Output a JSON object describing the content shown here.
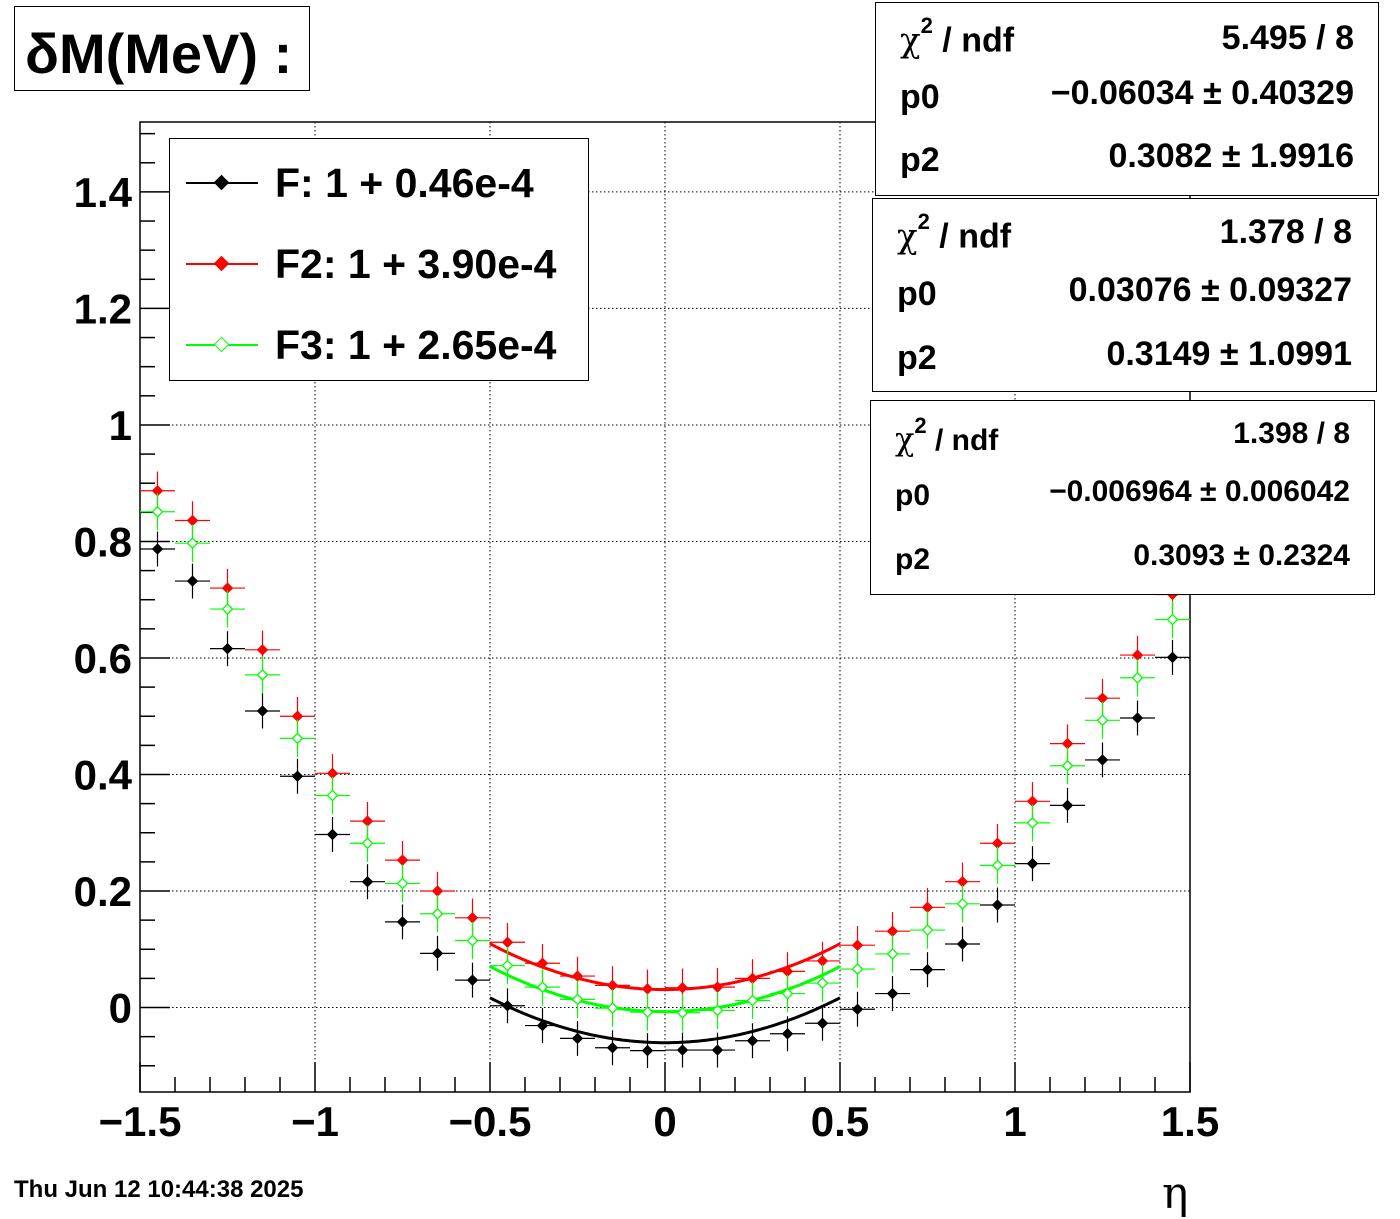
{
  "title": "δM(MeV) :",
  "date": "Thu Jun 12 10:44:38 2025",
  "x_label": "η",
  "legend": [
    {
      "label": "F: 1 + 0.46e-4",
      "color": "#000000",
      "marker": "filled-diamond"
    },
    {
      "label": "F2: 1 + 3.90e-4",
      "color": "#ff0000",
      "marker": "filled-diamond"
    },
    {
      "label": "F3: 1 + 2.65e-4",
      "color": "#00ff00",
      "marker": "open-diamond"
    }
  ],
  "stats": [
    {
      "chi2_label": "χ",
      "chi2_sup": "2",
      "chi2_tail": " / ndf",
      "chi2": "5.495 / 8",
      "p0_label": "p0",
      "p0": "−0.06034 ± 0.40329",
      "p2_label": "p2",
      "p2": "0.3082 ± 1.9916"
    },
    {
      "chi2_label": "χ",
      "chi2_sup": "2",
      "chi2_tail": " / ndf",
      "chi2": "1.378 / 8",
      "p0_label": "p0",
      "p0": "0.03076 ± 0.09327",
      "p2_label": "p2",
      "p2": "0.3149 ± 1.0991"
    },
    {
      "chi2_label": "χ",
      "chi2_sup": "2",
      "chi2_tail": " / ndf",
      "chi2": "1.398 / 8",
      "p0_label": "p0",
      "p0": "−0.006964 ± 0.006042",
      "p2_label": "p2",
      "p2": "0.3093 ± 0.2324"
    }
  ],
  "chart_data": {
    "type": "scatter",
    "xlim": [
      -1.5,
      1.5
    ],
    "ylim": [
      -0.145,
      1.52
    ],
    "x_ticks": [
      -1.5,
      -1,
      -0.5,
      0,
      0.5,
      1,
      1.5
    ],
    "x_tick_labels": [
      "−1.5",
      "−1",
      "−0.5",
      "0",
      "0.5",
      "1",
      "1.5"
    ],
    "y_ticks": [
      0,
      0.2,
      0.4,
      0.6,
      0.8,
      1,
      1.2,
      1.4
    ],
    "y_tick_labels": [
      "0",
      "0.2",
      "0.4",
      "0.6",
      "0.8",
      "1",
      "1.2",
      "1.4"
    ],
    "grid": true,
    "x": [
      -1.45,
      -1.35,
      -1.25,
      -1.15,
      -1.05,
      -0.95,
      -0.85,
      -0.75,
      -0.65,
      -0.55,
      -0.45,
      -0.35,
      -0.25,
      -0.15,
      -0.05,
      0.05,
      0.15,
      0.25,
      0.35,
      0.45,
      0.55,
      0.65,
      0.75,
      0.85,
      0.95,
      1.05,
      1.15,
      1.25,
      1.35,
      1.45
    ],
    "x_err": 0.05,
    "series": [
      {
        "name": "F: 1 + 0.46e-4",
        "color": "#000000",
        "marker": "filled",
        "values": [
          0.787,
          0.732,
          0.616,
          0.509,
          0.397,
          0.297,
          0.216,
          0.147,
          0.093,
          0.047,
          0.003,
          -0.031,
          -0.053,
          -0.069,
          -0.074,
          -0.073,
          -0.073,
          -0.057,
          -0.045,
          -0.027,
          -0.003,
          0.024,
          0.065,
          0.109,
          0.176,
          0.247,
          0.347,
          0.425,
          0.497,
          0.601
        ],
        "y_err": 0.03,
        "fit": {
          "p0": -0.06034,
          "p2": 0.3082,
          "range": [
            -0.5,
            0.5
          ]
        }
      },
      {
        "name": "F2: 1 + 3.90e-4",
        "color": "#ff0000",
        "marker": "filled",
        "values": [
          0.887,
          0.836,
          0.72,
          0.614,
          0.5,
          0.402,
          0.32,
          0.253,
          0.2,
          0.154,
          0.112,
          0.076,
          0.054,
          0.038,
          0.032,
          0.034,
          0.035,
          0.05,
          0.062,
          0.08,
          0.107,
          0.131,
          0.172,
          0.216,
          0.282,
          0.354,
          0.453,
          0.531,
          0.605,
          0.709
        ],
        "y_err": 0.033,
        "fit": {
          "p0": 0.03076,
          "p2": 0.3149,
          "range": [
            -0.5,
            0.5
          ]
        }
      },
      {
        "name": "F3: 1 + 2.65e-4",
        "color": "#00ff00",
        "marker": "open",
        "values": [
          0.851,
          0.797,
          0.684,
          0.571,
          0.462,
          0.364,
          0.282,
          0.213,
          0.161,
          0.115,
          0.072,
          0.035,
          0.014,
          -0.001,
          -0.008,
          -0.009,
          -0.005,
          0.012,
          0.024,
          0.042,
          0.066,
          0.092,
          0.133,
          0.178,
          0.244,
          0.317,
          0.415,
          0.493,
          0.566,
          0.666
        ],
        "y_err": 0.032,
        "fit": {
          "p0": -0.006964,
          "p2": 0.3093,
          "range": [
            -0.5,
            0.5
          ]
        }
      }
    ]
  }
}
